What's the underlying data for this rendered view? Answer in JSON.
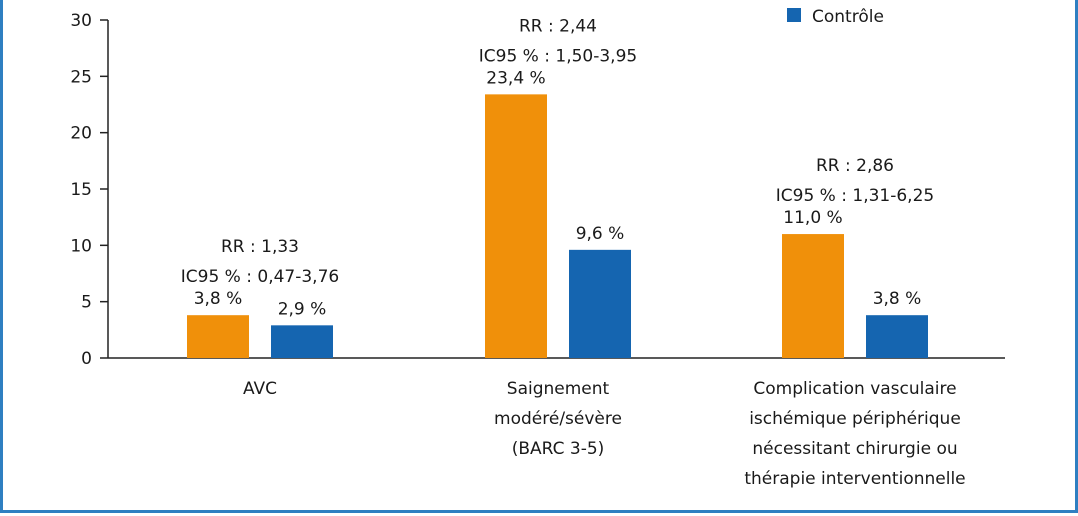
{
  "chart_data": {
    "type": "bar",
    "categories": [
      [
        "AVC"
      ],
      [
        "Saignement",
        "modéré/sévère",
        "(BARC 3-5)"
      ],
      [
        "Complication vasculaire",
        "ischémique périphérique",
        "nécessitant chirurgie ou",
        "thérapie interventionnelle"
      ]
    ],
    "series": [
      {
        "name": "",
        "color": "#f0900a",
        "values": [
          3.8,
          23.4,
          11.0
        ],
        "labels": [
          "3,8 %",
          "23,4 %",
          "11,0 %"
        ]
      },
      {
        "name": "Contrôle",
        "color": "#1565b0",
        "values": [
          2.9,
          9.6,
          3.8
        ],
        "labels": [
          "2,9 %",
          "9,6 %",
          "3,8 %"
        ]
      }
    ],
    "annotations": [
      {
        "rr": "RR : 1,33",
        "ci": "IC95 % : 0,47-3,76"
      },
      {
        "rr": "RR : 2,44",
        "ci": "IC95 % : 1,50-3,95"
      },
      {
        "rr": "RR : 2,86",
        "ci": "IC95 % : 1,31-6,25"
      }
    ],
    "yticks": [
      0,
      5,
      10,
      15,
      20,
      25,
      30
    ],
    "ylim": [
      0,
      30
    ],
    "legend_position": "top-right",
    "title": "",
    "xlabel": "",
    "ylabel": ""
  }
}
